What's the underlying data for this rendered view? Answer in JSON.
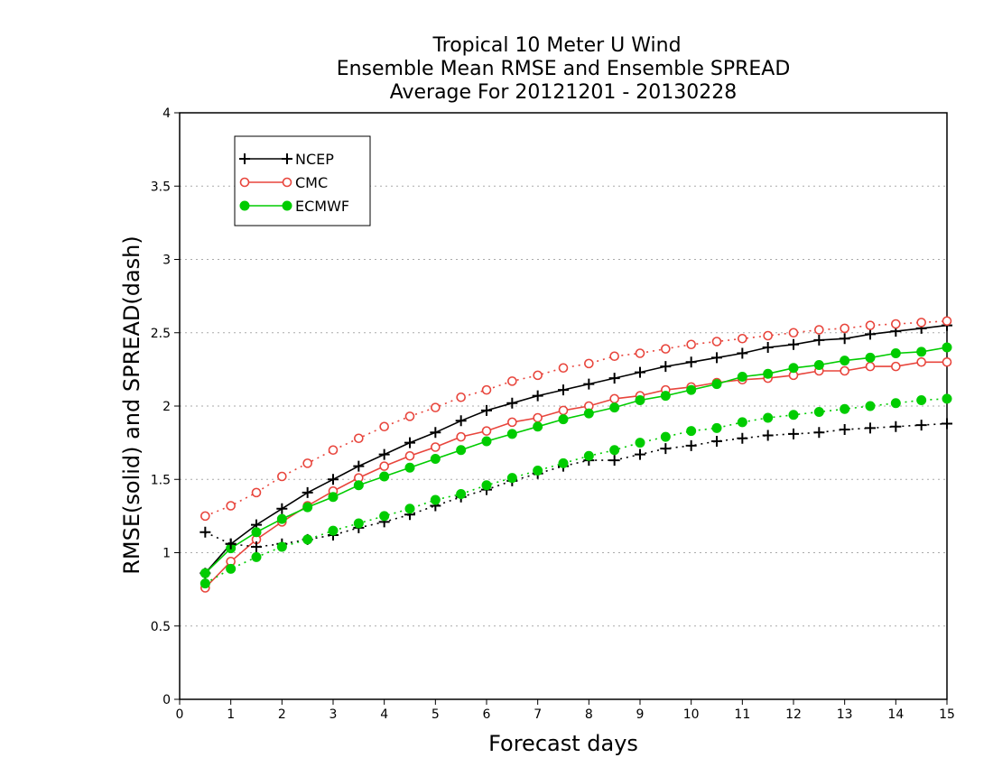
{
  "chart_data": {
    "type": "line",
    "title_lines": [
      "Tropical 10 Meter U Wind",
      "Ensemble Mean RMSE and Ensemble SPREAD",
      "Average For 20121201 - 20130228"
    ],
    "xlabel": "Forecast days",
    "ylabel": "RMSE(solid) and SPREAD(dash)",
    "xlim": [
      0,
      15
    ],
    "ylim": [
      0,
      4
    ],
    "x_ticks": [
      "0",
      "1",
      "2",
      "3",
      "4",
      "5",
      "6",
      "7",
      "8",
      "9",
      "10",
      "11",
      "12",
      "13",
      "14",
      "15"
    ],
    "y_ticks": [
      "0",
      "0.5",
      "1",
      "1.5",
      "2",
      "2.5",
      "3",
      "3.5",
      "4"
    ],
    "grid": "horizontal dotted",
    "legend_position": "top-left",
    "legend": [
      "NCEP",
      "CMC",
      "ECMWF"
    ],
    "x": [
      0.5,
      1,
      1.5,
      2,
      2.5,
      3,
      3.5,
      4,
      4.5,
      5,
      5.5,
      6,
      6.5,
      7,
      7.5,
      8,
      8.5,
      9,
      9.5,
      10,
      10.5,
      11,
      11.5,
      12,
      12.5,
      13,
      13.5,
      14,
      14.5,
      15
    ],
    "series": [
      {
        "name": "NCEP",
        "kind": "RMSE",
        "style": "solid",
        "marker": "plus",
        "color": "#000000",
        "values": [
          0.86,
          1.06,
          1.19,
          1.3,
          1.41,
          1.5,
          1.59,
          1.67,
          1.75,
          1.82,
          1.9,
          1.97,
          2.02,
          2.07,
          2.11,
          2.15,
          2.19,
          2.23,
          2.27,
          2.3,
          2.33,
          2.36,
          2.4,
          2.42,
          2.45,
          2.46,
          2.49,
          2.51,
          2.53,
          2.55
        ]
      },
      {
        "name": "CMC",
        "kind": "RMSE",
        "style": "solid",
        "marker": "circle",
        "color": "#e8453c",
        "values": [
          0.76,
          0.94,
          1.09,
          1.21,
          1.32,
          1.42,
          1.51,
          1.59,
          1.66,
          1.72,
          1.79,
          1.83,
          1.89,
          1.92,
          1.97,
          2.0,
          2.05,
          2.07,
          2.11,
          2.13,
          2.16,
          2.18,
          2.19,
          2.21,
          2.24,
          2.24,
          2.27,
          2.27,
          2.3,
          2.3
        ]
      },
      {
        "name": "ECMWF",
        "kind": "RMSE",
        "style": "solid",
        "marker": "dot",
        "color": "#00cc00",
        "values": [
          0.86,
          1.03,
          1.14,
          1.23,
          1.31,
          1.38,
          1.46,
          1.52,
          1.58,
          1.64,
          1.7,
          1.76,
          1.81,
          1.86,
          1.91,
          1.95,
          1.99,
          2.04,
          2.07,
          2.11,
          2.15,
          2.2,
          2.22,
          2.26,
          2.28,
          2.31,
          2.33,
          2.36,
          2.37,
          2.4
        ]
      },
      {
        "name": "NCEP",
        "kind": "SPREAD",
        "style": "dash",
        "marker": "plus",
        "color": "#000000",
        "values": [
          1.14,
          1.06,
          1.04,
          1.06,
          1.09,
          1.12,
          1.17,
          1.21,
          1.26,
          1.32,
          1.38,
          1.43,
          1.49,
          1.54,
          1.59,
          1.63,
          1.63,
          1.67,
          1.71,
          1.73,
          1.76,
          1.78,
          1.8,
          1.81,
          1.82,
          1.84,
          1.85,
          1.86,
          1.87,
          1.88
        ]
      },
      {
        "name": "CMC",
        "kind": "SPREAD",
        "style": "dash",
        "marker": "circle",
        "color": "#e8453c",
        "values": [
          1.25,
          1.32,
          1.41,
          1.52,
          1.61,
          1.7,
          1.78,
          1.86,
          1.93,
          1.99,
          2.06,
          2.11,
          2.17,
          2.21,
          2.26,
          2.29,
          2.34,
          2.36,
          2.39,
          2.42,
          2.44,
          2.46,
          2.48,
          2.5,
          2.52,
          2.53,
          2.55,
          2.56,
          2.57,
          2.58
        ]
      },
      {
        "name": "ECMWF",
        "kind": "SPREAD",
        "style": "dash",
        "marker": "dot",
        "color": "#00cc00",
        "values": [
          0.79,
          0.89,
          0.97,
          1.04,
          1.09,
          1.15,
          1.2,
          1.25,
          1.3,
          1.36,
          1.4,
          1.46,
          1.51,
          1.56,
          1.61,
          1.66,
          1.7,
          1.75,
          1.79,
          1.83,
          1.85,
          1.89,
          1.92,
          1.94,
          1.96,
          1.98,
          2.0,
          2.02,
          2.04,
          2.05
        ]
      }
    ]
  }
}
